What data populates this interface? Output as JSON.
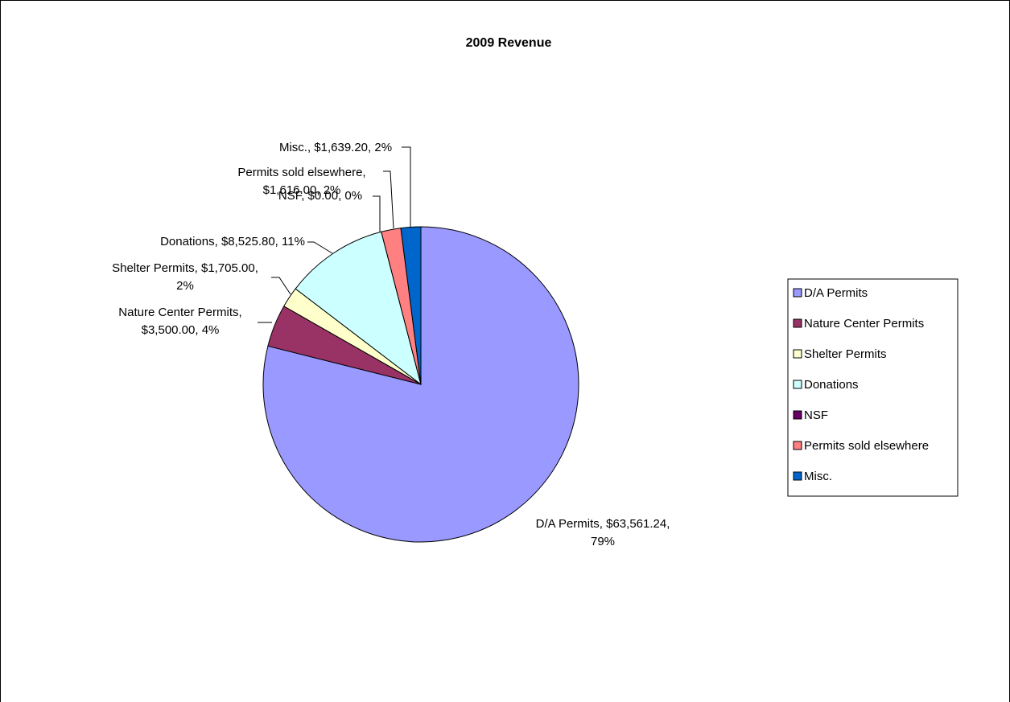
{
  "chart_data": {
    "type": "pie",
    "title": "2009 Revenue",
    "legend_position": "right",
    "slices": [
      {
        "name": "D/A Permits",
        "value": 63561.24,
        "color": "#9999ff",
        "label_lines": [
          "D/A Permits, $63,561.24,",
          "79%"
        ]
      },
      {
        "name": "Nature Center Permits",
        "value": 3500.0,
        "color": "#993366",
        "label_lines": [
          "Nature Center Permits,",
          "$3,500.00, 4%"
        ]
      },
      {
        "name": "Shelter Permits",
        "value": 1705.0,
        "color": "#ffffcc",
        "label_lines": [
          "Shelter Permits, $1,705.00,",
          "2%"
        ]
      },
      {
        "name": "Donations",
        "value": 8525.8,
        "color": "#ccffff",
        "label_lines": [
          "Donations, $8,525.80, 11%"
        ]
      },
      {
        "name": "NSF",
        "value": 0.0,
        "color": "#660066",
        "label_lines": [
          "NSF, $0.00, 0%"
        ]
      },
      {
        "name": "Permits sold elsewhere",
        "value": 1616.0,
        "color": "#ff8080",
        "label_lines": [
          "Permits sold elsewhere,",
          "$1,616.00, 2%"
        ]
      },
      {
        "name": "Misc.",
        "value": 1639.2,
        "color": "#0066cc",
        "label_lines": [
          "Misc., $1,639.20, 2%"
        ]
      }
    ]
  }
}
